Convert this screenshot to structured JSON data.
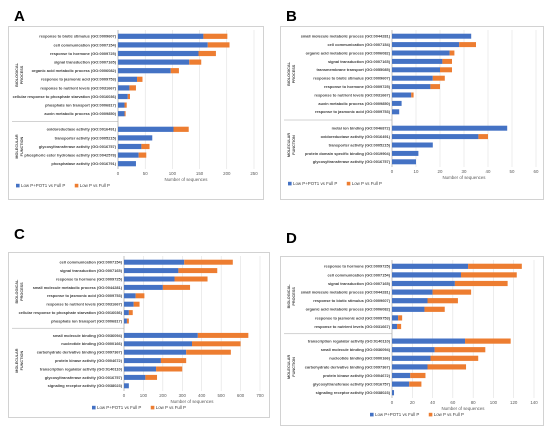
{
  "panels": [
    {
      "letter": "A",
      "chart_data": {
        "type": "bar",
        "orientation": "horizontal",
        "stacked": true,
        "xlabel": "Number of sequences",
        "xlim": [
          0,
          250
        ],
        "xticks": [
          0,
          50,
          100,
          150,
          200,
          250
        ],
        "grid": true,
        "legend_position": "bottom-left",
        "group_labels": [
          "BIOLOGICAL PROCESS",
          "MOLECULAR FUNCTION"
        ],
        "groups": [
          {
            "name": "BIOLOGICAL PROCESS",
            "categories": [
              "response to biotic stimulus (GO:0009607)",
              "cell communication (GO:0007154)",
              "response to hormone (GO:0009725)",
              "signal transduction (GO:0007165)",
              "organic acid metabolic process (GO:0006082)",
              "response to jasmonic acid (GO:0009753)",
              "response to nutrient levels (GO:0031667)",
              "cellular response to phosphate starvation (GO:0016036)",
              "phosphate ion transport (GO:0006817)",
              "auxin metabolic process (GO:0009850)"
            ]
          },
          {
            "name": "MOLECULAR FUNCTION",
            "categories": [
              "oxidoreductase activity (GO:0016491)",
              "transporter activity (GO:0005215)",
              "glycosyltransferase activity (GO:0016757)",
              "phosphoric ester hydrolase activity (GO:0042578)",
              "phosphatase activity (GO:0016791)"
            ]
          }
        ],
        "series": [
          {
            "name": "Low P+POT1 vs Full P",
            "color": "#4472c4",
            "values": [
              157,
              165,
              148,
              131,
              97,
              35,
              21,
              18,
              12,
              12,
              102,
              63,
              43,
              38,
              33
            ]
          },
          {
            "name": "Low P vs Full P",
            "color": "#ed7d31",
            "values": [
              44,
              40,
              32,
              22,
              15,
              10,
              12,
              4,
              4,
              2,
              28,
              0,
              15,
              14,
              0
            ]
          }
        ]
      }
    },
    {
      "letter": "B",
      "chart_data": {
        "type": "bar",
        "orientation": "horizontal",
        "stacked": true,
        "xlabel": "Number of sequences",
        "xlim": [
          0,
          60
        ],
        "xticks": [
          0,
          10,
          20,
          30,
          40,
          50,
          60
        ],
        "grid": true,
        "legend_position": "bottom-left",
        "group_labels": [
          "BIOLOGICAL PROCESS",
          "MOLECULAR FUNCTION"
        ],
        "groups": [
          {
            "name": "BIOLOGICAL PROCESS",
            "categories": [
              "small molecule metabolic process (GO:0044281)",
              "cell communication (GO:0007154)",
              "organic acid metabolic process (GO:0006082)",
              "signal transduction (GO:0007165)",
              "transmembrane transport (GO:0055085)",
              "response to biotic stimulus (GO:0009607)",
              "response to hormone (GO:0009725)",
              "response to nutrient levels (GO:0031667)",
              "auxin metabolic process (GO:0009850)",
              "response to jasmonic acid (GO:0009753)"
            ]
          },
          {
            "name": "MOLECULAR FUNCTION",
            "categories": [
              "metal ion binding (GO:0046872)",
              "oxidoreductase activity (GO:0016491)",
              "transporter activity (GO:0005215)",
              "protein domain specific binding (GO:0019904)",
              "glycosyltransferase activity (GO:0016757)"
            ]
          }
        ],
        "series": [
          {
            "name": "Low P+POT1 vs Full P",
            "color": "#4472c4",
            "values": [
              33,
              28,
              24,
              21,
              20,
              17,
              16,
              8,
              4,
              3,
              48,
              36,
              17,
              11,
              10
            ]
          },
          {
            "name": "Low P vs Full P",
            "color": "#ed7d31",
            "values": [
              0,
              7,
              2,
              4,
              5,
              5,
              4,
              1,
              0,
              0,
              0,
              4,
              0,
              0,
              0
            ]
          }
        ]
      }
    },
    {
      "letter": "C",
      "chart_data": {
        "type": "bar",
        "orientation": "horizontal",
        "stacked": true,
        "xlabel": "Number of sequences",
        "xlim": [
          0,
          700
        ],
        "xticks": [
          0,
          100,
          200,
          300,
          400,
          500,
          600,
          700
        ],
        "grid": true,
        "legend_position": "bottom-center",
        "group_labels": [
          "BIOLOGICAL PROCESS",
          "MOLECULAR FUNCTION"
        ],
        "groups": [
          {
            "name": "BIOLOGICAL PROCESS",
            "categories": [
              "cell communication (GO:0007154)",
              "signal transduction (GO:0007165)",
              "response to hormone (GO:0009725)",
              "small molecule metabolic process (GO:0044281)",
              "response to jasmonic acid (GO:0009753)",
              "response to nutrient levels (GO:0031667)",
              "cellular response to phosphate starvation (GO:0016036)",
              "phosphate ion transport (GO:0006817)"
            ]
          },
          {
            "name": "MOLECULAR FUNCTION",
            "categories": [
              "small molecule binding (GO:0036094)",
              "nucleotide binding (GO:0000166)",
              "carbohydrate derivative binding (GO:0097367)",
              "protein kinase activity (GO:0004672)",
              "transcription regulator activity (GO:0140110)",
              "glycosyltransferase activity (GO:0016757)",
              "signaling receptor activity (GO:0038023)"
            ]
          }
        ],
        "series": [
          {
            "name": "Low P+POT1 vs Full P",
            "color": "#4472c4",
            "values": [
              310,
              280,
              260,
              200,
              60,
              50,
              25,
              15,
              380,
              350,
              320,
              190,
              165,
              110,
              25
            ]
          },
          {
            "name": "Low P vs Full P",
            "color": "#ed7d31",
            "values": [
              250,
              200,
              170,
              140,
              45,
              30,
              20,
              10,
              260,
              250,
              230,
              130,
              135,
              60,
              0
            ]
          }
        ]
      }
    },
    {
      "letter": "D",
      "chart_data": {
        "type": "bar",
        "orientation": "horizontal",
        "stacked": true,
        "xlabel": "Number of sequences",
        "xlim": [
          0,
          140
        ],
        "xticks": [
          0,
          20,
          40,
          60,
          80,
          100,
          120,
          140
        ],
        "grid": true,
        "legend_position": "bottom-center",
        "group_labels": [
          "BIOLOGICAL PROCESS",
          "MOLECULAR FUNCTION"
        ],
        "groups": [
          {
            "name": "BIOLOGICAL PROCESS",
            "categories": [
              "response to hormone (GO:0009725)",
              "cell communication (GO:0007154)",
              "signal transduction (GO:0007165)",
              "small molecule metabolic process (GO:0044281)",
              "response to biotic stimulus (GO:0009607)",
              "organic acid metabolic process (GO:0006082)",
              "response to jasmonic acid (GO:0009753)",
              "response to nutrient levels (GO:0031667)"
            ]
          },
          {
            "name": "MOLECULAR FUNCTION",
            "categories": [
              "transcription regulator activity (GO:0140110)",
              "small molecule binding (GO:0036094)",
              "nucleotide binding (GO:0000166)",
              "carbohydrate derivative binding (GO:0097367)",
              "protein kinase activity (GO:0004672)",
              "glycosyltransferase activity (GO:0016757)",
              "signaling receptor activity (GO:0038023)"
            ]
          }
        ],
        "series": [
          {
            "name": "Low P+POT1 vs Full P",
            "color": "#4472c4",
            "values": [
              75,
              68,
              62,
              40,
              35,
              32,
              6,
              5,
              72,
              42,
              38,
              35,
              18,
              17,
              2
            ]
          },
          {
            "name": "Low P vs Full P",
            "color": "#ed7d31",
            "values": [
              53,
              55,
              52,
              38,
              30,
              20,
              4,
              4,
              45,
              50,
              47,
              38,
              15,
              12,
              0
            ]
          }
        ]
      }
    }
  ]
}
